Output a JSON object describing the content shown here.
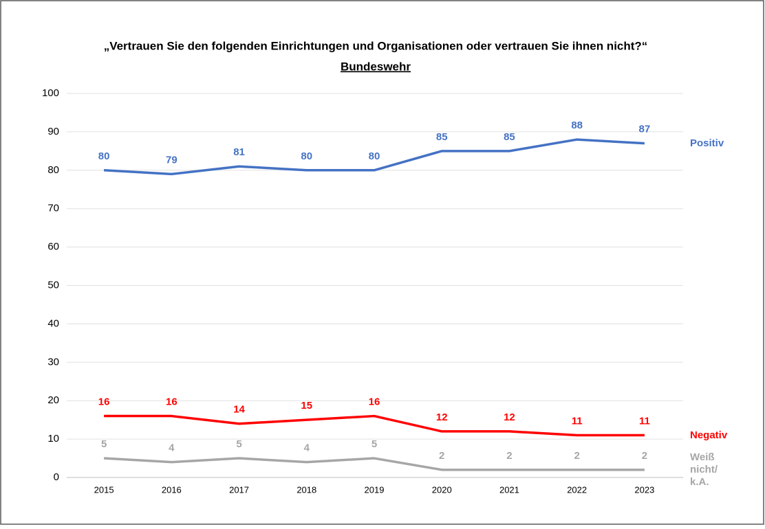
{
  "chart_data": {
    "type": "line",
    "title": "„Vertrauen Sie den folgenden Einrichtungen und Organisationen oder vertrauen Sie ihnen nicht?“",
    "subtitle": "Bundeswehr",
    "categories": [
      "2015",
      "2016",
      "2017",
      "2018",
      "2019",
      "2020",
      "2021",
      "2022",
      "2023"
    ],
    "series": [
      {
        "name": "Positiv",
        "color": "#4472c4",
        "values": [
          80,
          79,
          81,
          80,
          80,
          85,
          85,
          88,
          87
        ]
      },
      {
        "name": "Negativ",
        "color": "#ff0000",
        "values": [
          16,
          16,
          14,
          15,
          16,
          12,
          12,
          11,
          11
        ]
      },
      {
        "name": "Weiß nicht/ k.A.",
        "color": "#a6a6a6",
        "values": [
          5,
          4,
          5,
          4,
          5,
          2,
          2,
          2,
          2
        ]
      }
    ],
    "ylim": [
      0,
      100
    ],
    "yticks": [
      0,
      10,
      20,
      30,
      40,
      50,
      60,
      70,
      80,
      90,
      100
    ],
    "grid": true
  }
}
